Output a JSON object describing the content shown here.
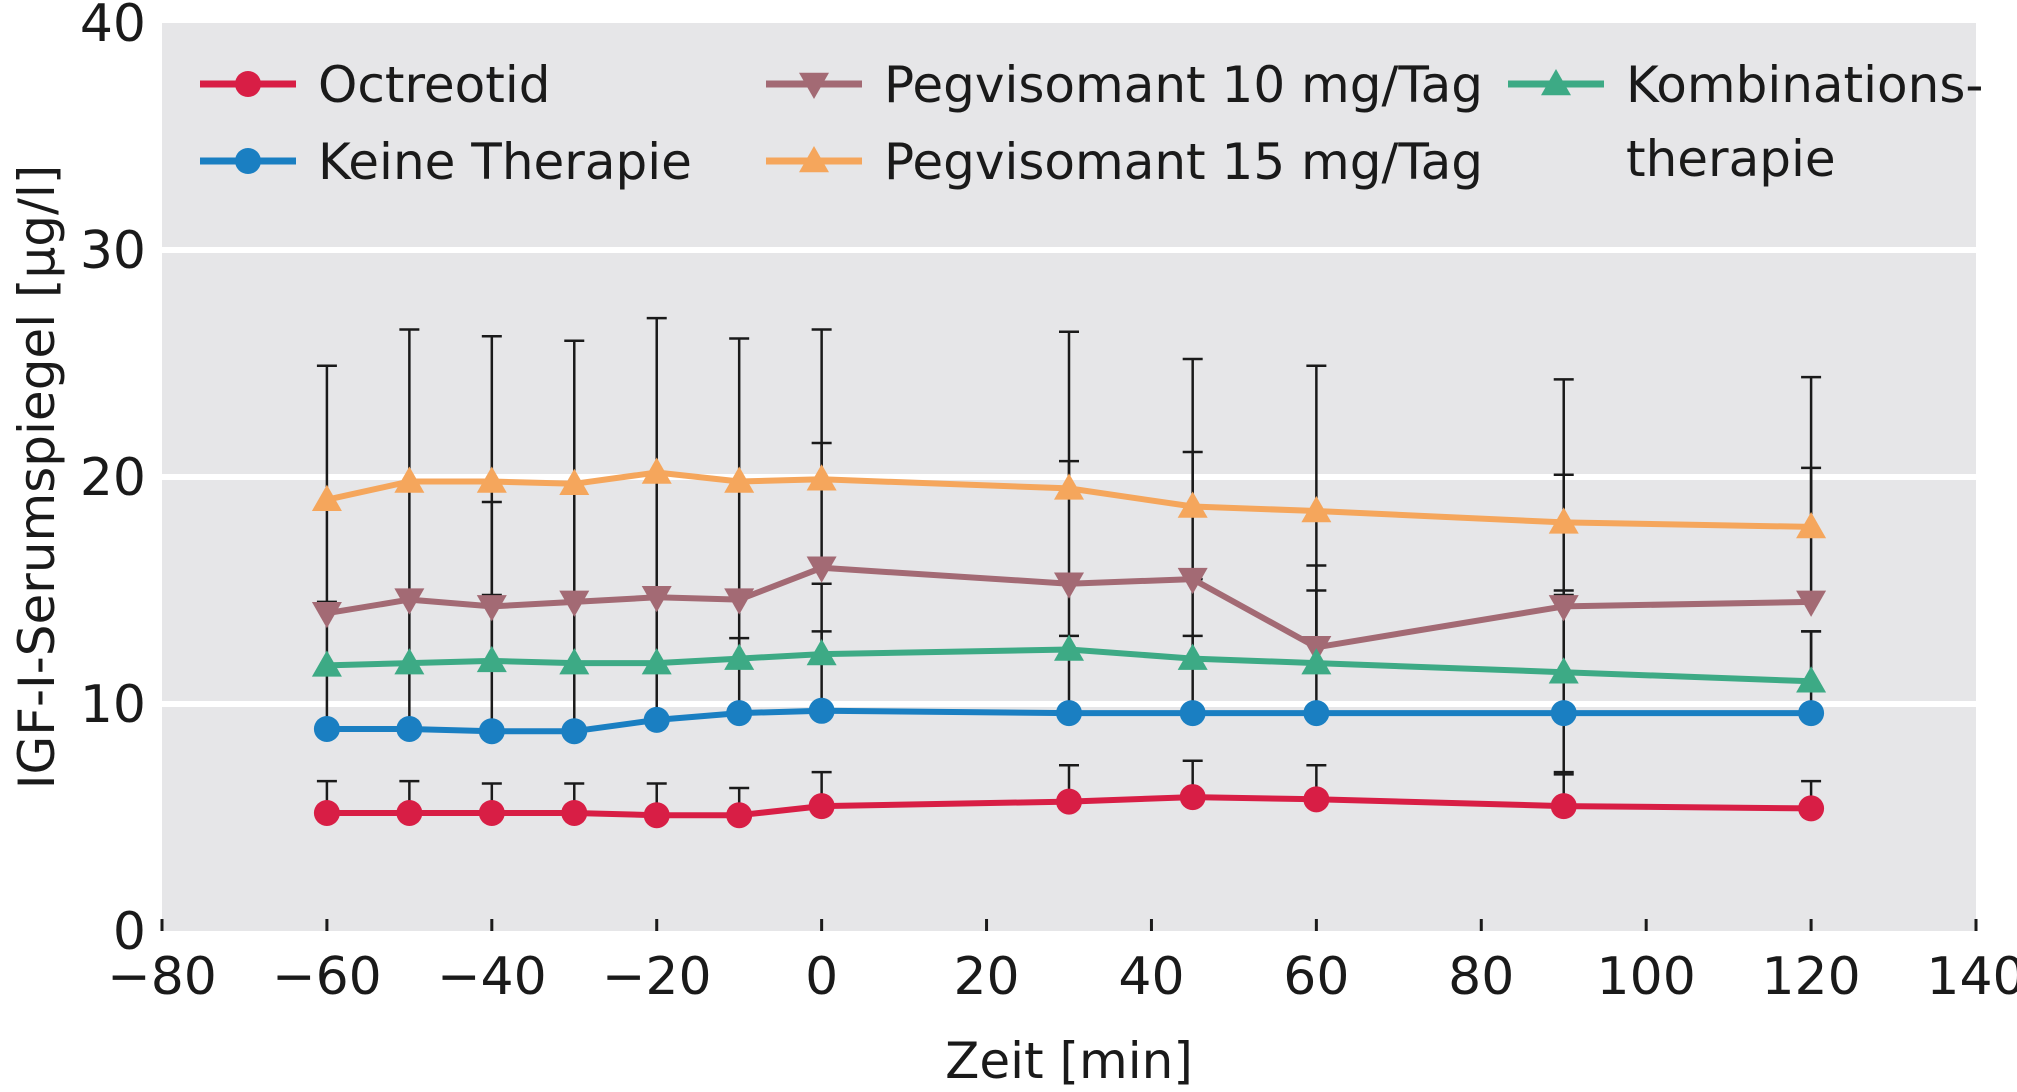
{
  "chart_data": {
    "type": "line",
    "title": "",
    "xlabel": "Zeit [min]",
    "ylabel": "IGF-I-Serumspiegel [µg/l]",
    "xlim": [
      -80,
      140
    ],
    "ylim": [
      0,
      40
    ],
    "x_ticks": [
      "−80",
      "−60",
      "−40",
      "−20",
      "0",
      "20",
      "40",
      "60",
      "80",
      "100",
      "120",
      "140"
    ],
    "y_ticks": [
      "0",
      "10",
      "20",
      "30",
      "40"
    ],
    "x": [
      -60,
      -50,
      -40,
      -30,
      -20,
      -10,
      0,
      30,
      45,
      60,
      90,
      120
    ],
    "grid": "horizontal",
    "legend_placement": "top",
    "background_color": "#e6e6e8",
    "series": [
      {
        "name": "Octreotid",
        "color": "#d81e45",
        "marker": "circle",
        "values": [
          5.2,
          5.2,
          5.2,
          5.2,
          5.1,
          5.1,
          5.5,
          5.7,
          5.9,
          5.8,
          5.5,
          5.4
        ],
        "error_upper": [
          6.6,
          6.6,
          6.5,
          6.5,
          6.5,
          6.3,
          7.0,
          7.3,
          7.5,
          7.3,
          7.0,
          6.6
        ]
      },
      {
        "name": "Keine Therapie",
        "color": "#1a7fc2",
        "marker": "circle",
        "values": [
          8.9,
          8.9,
          8.8,
          8.8,
          9.3,
          9.6,
          9.7,
          9.6,
          9.6,
          9.6,
          9.6,
          9.6
        ],
        "error_upper": [
          14.5,
          14.8,
          14.8,
          14.7,
          14.8,
          14.8,
          15.3,
          15.5,
          15.5,
          15.0,
          15.0,
          13.2
        ],
        "error_lower": [
          null,
          null,
          null,
          null,
          null,
          null,
          null,
          null,
          null,
          null,
          6.9,
          null
        ]
      },
      {
        "name": "Pegvisomant 10 mg/Tag",
        "color": "#a36a74",
        "marker": "triangle-down",
        "values": [
          14.0,
          14.6,
          14.3,
          14.5,
          14.7,
          14.6,
          16.0,
          15.3,
          15.5,
          12.5,
          14.3,
          14.5
        ],
        "error_upper": [
          24.9,
          26.5,
          26.2,
          26.0,
          27.0,
          26.1,
          26.5,
          26.4,
          25.2,
          24.9,
          24.3,
          24.4
        ]
      },
      {
        "name": "Pegvisomant 15 mg/Tag",
        "color": "#f5a65c",
        "marker": "triangle-up",
        "values": [
          19.0,
          19.8,
          19.8,
          19.7,
          20.2,
          19.8,
          19.9,
          19.5,
          18.7,
          18.5,
          18.0,
          17.8
        ],
        "error_upper": [
          null,
          null,
          null,
          null,
          null,
          null,
          21.5,
          20.7,
          21.1,
          null,
          20.1,
          20.4
        ]
      },
      {
        "name": "Kombinations-therapie",
        "name_lines": [
          "Kombinations-",
          "therapie"
        ],
        "color": "#3daa85",
        "marker": "triangle-up",
        "values": [
          11.7,
          11.8,
          11.9,
          11.8,
          11.8,
          12.0,
          12.2,
          12.4,
          12.0,
          11.8,
          11.4,
          11.0
        ],
        "error_upper": [
          null,
          null,
          18.9,
          null,
          null,
          12.9,
          13.2,
          13.0,
          13.0,
          16.1,
          14.8,
          13.2
        ]
      }
    ]
  }
}
